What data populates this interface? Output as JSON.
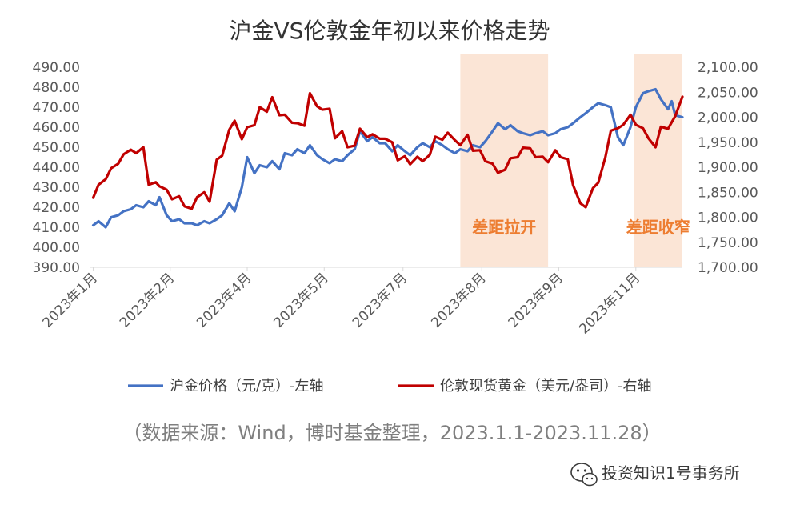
{
  "chart_data": {
    "type": "line",
    "title": "沪金VS伦敦金年初以来价格走势",
    "left_axis": {
      "ticks": [
        "490.00",
        "480.00",
        "470.00",
        "460.00",
        "450.00",
        "440.00",
        "430.00",
        "420.00",
        "410.00",
        "400.00",
        "390.00"
      ],
      "ylim": [
        390,
        490
      ]
    },
    "right_axis": {
      "ticks": [
        "2,100.00",
        "2,050.00",
        "2,000.00",
        "1,950.00",
        "1,900.00",
        "1,850.00",
        "1,800.00",
        "1,750.00",
        "1,700.00"
      ],
      "ylim": [
        1700,
        2100
      ]
    },
    "x_tick_labels": [
      "2023年1月",
      "2023年2月",
      "2023年4月",
      "2023年5月",
      "2023年7月",
      "2023年8月",
      "2023年9月",
      "2023年11月"
    ],
    "x_range": [
      "2023-01-01",
      "2023-11-28"
    ],
    "x_tick_dates": [
      "2023-01-03",
      "2023-02-15",
      "2023-03-30",
      "2023-05-12",
      "2023-06-25",
      "2023-08-08",
      "2023-09-20",
      "2023-11-02"
    ],
    "shaded_regions": [
      {
        "label": "差距拉开",
        "start": "2023-07-27",
        "end": "2023-09-14",
        "color": "#FBE5D6"
      },
      {
        "label": "差距收窄",
        "start": "2023-11-01",
        "end": "2023-11-28",
        "color": "#FBE5D6"
      }
    ],
    "series": [
      {
        "name": "沪金价格（元/克）-左轴",
        "axis": "left",
        "color": "#4472C4",
        "points": [
          [
            "2023-01-03",
            411
          ],
          [
            "2023-01-06",
            413
          ],
          [
            "2023-01-10",
            410
          ],
          [
            "2023-01-13",
            415
          ],
          [
            "2023-01-17",
            416
          ],
          [
            "2023-01-20",
            418
          ],
          [
            "2023-01-24",
            419
          ],
          [
            "2023-01-27",
            421
          ],
          [
            "2023-01-31",
            420
          ],
          [
            "2023-02-03",
            423
          ],
          [
            "2023-02-07",
            421
          ],
          [
            "2023-02-09",
            425
          ],
          [
            "2023-02-13",
            416
          ],
          [
            "2023-02-16",
            413
          ],
          [
            "2023-02-20",
            414
          ],
          [
            "2023-02-23",
            412
          ],
          [
            "2023-02-27",
            412
          ],
          [
            "2023-03-02",
            411
          ],
          [
            "2023-03-06",
            413
          ],
          [
            "2023-03-09",
            412
          ],
          [
            "2023-03-13",
            414
          ],
          [
            "2023-03-16",
            416
          ],
          [
            "2023-03-20",
            422
          ],
          [
            "2023-03-23",
            418
          ],
          [
            "2023-03-27",
            430
          ],
          [
            "2023-03-30",
            445
          ],
          [
            "2023-04-03",
            437
          ],
          [
            "2023-04-06",
            441
          ],
          [
            "2023-04-10",
            440
          ],
          [
            "2023-04-13",
            443
          ],
          [
            "2023-04-17",
            439
          ],
          [
            "2023-04-20",
            447
          ],
          [
            "2023-04-24",
            446
          ],
          [
            "2023-04-27",
            449
          ],
          [
            "2023-05-01",
            447
          ],
          [
            "2023-05-04",
            451
          ],
          [
            "2023-05-08",
            446
          ],
          [
            "2023-05-11",
            444
          ],
          [
            "2023-05-15",
            442
          ],
          [
            "2023-05-18",
            444
          ],
          [
            "2023-05-22",
            443
          ],
          [
            "2023-05-25",
            446
          ],
          [
            "2023-05-29",
            449
          ],
          [
            "2023-06-01",
            458
          ],
          [
            "2023-06-05",
            453
          ],
          [
            "2023-06-08",
            455
          ],
          [
            "2023-06-12",
            452
          ],
          [
            "2023-06-15",
            452
          ],
          [
            "2023-06-19",
            448
          ],
          [
            "2023-06-22",
            451
          ],
          [
            "2023-06-26",
            448
          ],
          [
            "2023-06-29",
            446
          ],
          [
            "2023-07-03",
            450
          ],
          [
            "2023-07-06",
            452
          ],
          [
            "2023-07-10",
            450
          ],
          [
            "2023-07-13",
            453
          ],
          [
            "2023-07-17",
            451
          ],
          [
            "2023-07-20",
            449
          ],
          [
            "2023-07-24",
            447
          ],
          [
            "2023-07-27",
            449
          ],
          [
            "2023-07-31",
            448
          ],
          [
            "2023-08-03",
            451
          ],
          [
            "2023-08-07",
            450
          ],
          [
            "2023-08-10",
            453
          ],
          [
            "2023-08-14",
            458
          ],
          [
            "2023-08-17",
            462
          ],
          [
            "2023-08-21",
            459
          ],
          [
            "2023-08-24",
            461
          ],
          [
            "2023-08-28",
            458
          ],
          [
            "2023-08-31",
            457
          ],
          [
            "2023-09-04",
            456
          ],
          [
            "2023-09-07",
            457
          ],
          [
            "2023-09-11",
            458
          ],
          [
            "2023-09-14",
            456
          ],
          [
            "2023-09-18",
            457
          ],
          [
            "2023-09-21",
            459
          ],
          [
            "2023-09-25",
            460
          ],
          [
            "2023-09-28",
            462
          ],
          [
            "2023-10-02",
            465
          ],
          [
            "2023-10-05",
            467
          ],
          [
            "2023-10-09",
            470
          ],
          [
            "2023-10-12",
            472
          ],
          [
            "2023-10-16",
            471
          ],
          [
            "2023-10-19",
            470
          ],
          [
            "2023-10-23",
            455
          ],
          [
            "2023-10-26",
            451
          ],
          [
            "2023-10-30",
            460
          ],
          [
            "2023-11-02",
            470
          ],
          [
            "2023-11-06",
            477
          ],
          [
            "2023-11-09",
            478
          ],
          [
            "2023-11-13",
            479
          ],
          [
            "2023-11-16",
            474
          ],
          [
            "2023-11-20",
            469
          ],
          [
            "2023-11-22",
            473
          ],
          [
            "2023-11-24",
            466
          ],
          [
            "2023-11-28",
            465
          ]
        ]
      },
      {
        "name": "伦敦现货黄金（美元/盎司）-右轴",
        "axis": "right",
        "color": "#C00000",
        "points": [
          [
            "2023-01-03",
            1839
          ],
          [
            "2023-01-06",
            1865
          ],
          [
            "2023-01-10",
            1876
          ],
          [
            "2023-01-13",
            1898
          ],
          [
            "2023-01-17",
            1907
          ],
          [
            "2023-01-20",
            1926
          ],
          [
            "2023-01-24",
            1935
          ],
          [
            "2023-01-27",
            1928
          ],
          [
            "2023-01-31",
            1940
          ],
          [
            "2023-02-03",
            1865
          ],
          [
            "2023-02-07",
            1870
          ],
          [
            "2023-02-09",
            1862
          ],
          [
            "2023-02-13",
            1855
          ],
          [
            "2023-02-16",
            1836
          ],
          [
            "2023-02-20",
            1842
          ],
          [
            "2023-02-23",
            1822
          ],
          [
            "2023-02-27",
            1817
          ],
          [
            "2023-03-02",
            1840
          ],
          [
            "2023-03-06",
            1850
          ],
          [
            "2023-03-09",
            1831
          ],
          [
            "2023-03-13",
            1915
          ],
          [
            "2023-03-16",
            1923
          ],
          [
            "2023-03-20",
            1975
          ],
          [
            "2023-03-23",
            1993
          ],
          [
            "2023-03-27",
            1956
          ],
          [
            "2023-03-30",
            1980
          ],
          [
            "2023-04-03",
            1984
          ],
          [
            "2023-04-06",
            2020
          ],
          [
            "2023-04-10",
            2011
          ],
          [
            "2023-04-13",
            2040
          ],
          [
            "2023-04-17",
            2004
          ],
          [
            "2023-04-20",
            2005
          ],
          [
            "2023-04-24",
            1989
          ],
          [
            "2023-04-27",
            1988
          ],
          [
            "2023-05-01",
            1983
          ],
          [
            "2023-05-04",
            2048
          ],
          [
            "2023-05-08",
            2022
          ],
          [
            "2023-05-11",
            2015
          ],
          [
            "2023-05-15",
            2017
          ],
          [
            "2023-05-18",
            1958
          ],
          [
            "2023-05-22",
            1972
          ],
          [
            "2023-05-25",
            1940
          ],
          [
            "2023-05-29",
            1943
          ],
          [
            "2023-06-01",
            1977
          ],
          [
            "2023-06-05",
            1960
          ],
          [
            "2023-06-08",
            1966
          ],
          [
            "2023-06-12",
            1957
          ],
          [
            "2023-06-15",
            1957
          ],
          [
            "2023-06-19",
            1950
          ],
          [
            "2023-06-22",
            1914
          ],
          [
            "2023-06-26",
            1922
          ],
          [
            "2023-06-29",
            1906
          ],
          [
            "2023-07-03",
            1921
          ],
          [
            "2023-07-06",
            1912
          ],
          [
            "2023-07-10",
            1925
          ],
          [
            "2023-07-13",
            1961
          ],
          [
            "2023-07-17",
            1955
          ],
          [
            "2023-07-20",
            1969
          ],
          [
            "2023-07-24",
            1954
          ],
          [
            "2023-07-27",
            1944
          ],
          [
            "2023-07-31",
            1965
          ],
          [
            "2023-08-03",
            1933
          ],
          [
            "2023-08-07",
            1934
          ],
          [
            "2023-08-10",
            1912
          ],
          [
            "2023-08-14",
            1907
          ],
          [
            "2023-08-17",
            1889
          ],
          [
            "2023-08-21",
            1895
          ],
          [
            "2023-08-24",
            1918
          ],
          [
            "2023-08-28",
            1920
          ],
          [
            "2023-08-31",
            1939
          ],
          [
            "2023-09-04",
            1938
          ],
          [
            "2023-09-07",
            1920
          ],
          [
            "2023-09-11",
            1921
          ],
          [
            "2023-09-14",
            1910
          ],
          [
            "2023-09-18",
            1934
          ],
          [
            "2023-09-21",
            1920
          ],
          [
            "2023-09-25",
            1916
          ],
          [
            "2023-09-28",
            1864
          ],
          [
            "2023-10-02",
            1828
          ],
          [
            "2023-10-05",
            1820
          ],
          [
            "2023-10-09",
            1858
          ],
          [
            "2023-10-12",
            1869
          ],
          [
            "2023-10-16",
            1920
          ],
          [
            "2023-10-19",
            1973
          ],
          [
            "2023-10-23",
            1978
          ],
          [
            "2023-10-26",
            1985
          ],
          [
            "2023-10-30",
            2005
          ],
          [
            "2023-11-02",
            1985
          ],
          [
            "2023-11-06",
            1978
          ],
          [
            "2023-11-09",
            1958
          ],
          [
            "2023-11-13",
            1940
          ],
          [
            "2023-11-16",
            1981
          ],
          [
            "2023-11-20",
            1977
          ],
          [
            "2023-11-22",
            1990
          ],
          [
            "2023-11-24",
            2002
          ],
          [
            "2023-11-28",
            2041
          ]
        ]
      }
    ],
    "legend_position": "bottom",
    "grid": false
  },
  "source_note": "（数据来源：Wind，博时基金整理，2023.1.1-2023.11.28）",
  "watermark": "投资知识1号事务所",
  "watermark_icon": "wechat-icon"
}
